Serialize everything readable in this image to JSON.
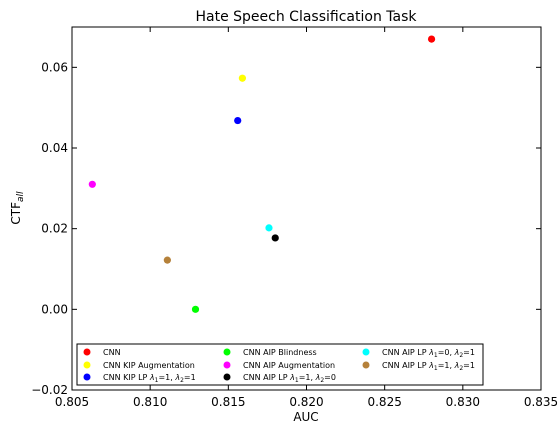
{
  "chart_data": {
    "type": "scatter",
    "title": "Hate Speech Classification Task",
    "xlabel": "AUC",
    "ylabel": "CTF",
    "ylabel_sub": "all",
    "xlim": [
      0.805,
      0.835
    ],
    "ylim": [
      -0.02,
      0.07
    ],
    "xticks": [
      0.805,
      0.81,
      0.815,
      0.82,
      0.825,
      0.83,
      0.835
    ],
    "xtick_labels": [
      "0.805",
      "0.810",
      "0.815",
      "0.820",
      "0.825",
      "0.830",
      "0.835"
    ],
    "yticks": [
      -0.02,
      0.0,
      0.02,
      0.04,
      0.06
    ],
    "ytick_labels": [
      "−0.02",
      "0.00",
      "0.02",
      "0.04",
      "0.06"
    ],
    "grid": false,
    "legend_position": "lower-center",
    "series": [
      {
        "name": "CNN",
        "color": "#ff0000",
        "x": 0.828,
        "y": 0.067
      },
      {
        "name": "CNN KIP Augmentation",
        "color": "#ffff00",
        "x": 0.8159,
        "y": 0.0573
      },
      {
        "name": "CNN KIP LP λ1=1, λ2=1",
        "color": "#0000ff",
        "x": 0.8156,
        "y": 0.0468
      },
      {
        "name": "CNN AIP Blindness",
        "color": "#00ff00",
        "x": 0.8129,
        "y": 0.0
      },
      {
        "name": "CNN AIP Augmentation",
        "color": "#ff00ff",
        "x": 0.8063,
        "y": 0.031
      },
      {
        "name": "CNN AIP LP λ1=1, λ2=0",
        "color": "#000000",
        "x": 0.818,
        "y": 0.0177
      },
      {
        "name": "CNN AIP LP λ1=0, λ2=1",
        "color": "#00ffff",
        "x": 0.8176,
        "y": 0.0202
      },
      {
        "name": "CNN AIP LP λ1=1, λ2=1",
        "color": "#b5813a",
        "x": 0.8111,
        "y": 0.0122
      }
    ],
    "legend": [
      [
        {
          "parts": [
            {
              "t": "CNN"
            }
          ],
          "color": "#ff0000"
        },
        {
          "parts": [
            {
              "t": "CNN KIP Augmentation"
            }
          ],
          "color": "#ffff00"
        },
        {
          "parts": [
            {
              "t": "CNN KIP LP "
            },
            {
              "t": "λ",
              "i": true
            },
            {
              "t": "1",
              "sub": true
            },
            {
              "t": "=1, "
            },
            {
              "t": "λ",
              "i": true
            },
            {
              "t": "2",
              "sub": true
            },
            {
              "t": "=1"
            }
          ],
          "color": "#0000ff"
        }
      ],
      [
        {
          "parts": [
            {
              "t": "CNN AIP Blindness"
            }
          ],
          "color": "#00ff00"
        },
        {
          "parts": [
            {
              "t": "CNN AIP Augmentation"
            }
          ],
          "color": "#ff00ff"
        },
        {
          "parts": [
            {
              "t": "CNN AIP LP "
            },
            {
              "t": "λ",
              "i": true
            },
            {
              "t": "1",
              "sub": true
            },
            {
              "t": "=1, "
            },
            {
              "t": "λ",
              "i": true
            },
            {
              "t": "2",
              "sub": true
            },
            {
              "t": "=0"
            }
          ],
          "color": "#000000"
        }
      ],
      [
        {
          "parts": [
            {
              "t": "CNN AIP LP "
            },
            {
              "t": "λ",
              "i": true
            },
            {
              "t": "1",
              "sub": true
            },
            {
              "t": "=0, "
            },
            {
              "t": "λ",
              "i": true
            },
            {
              "t": "2",
              "sub": true
            },
            {
              "t": "=1"
            }
          ],
          "color": "#00ffff"
        },
        {
          "parts": [
            {
              "t": "CNN AIP LP "
            },
            {
              "t": "λ",
              "i": true
            },
            {
              "t": "1",
              "sub": true
            },
            {
              "t": "=1, "
            },
            {
              "t": "λ",
              "i": true
            },
            {
              "t": "2",
              "sub": true
            },
            {
              "t": "=1"
            }
          ],
          "color": "#b5813a"
        }
      ]
    ]
  }
}
